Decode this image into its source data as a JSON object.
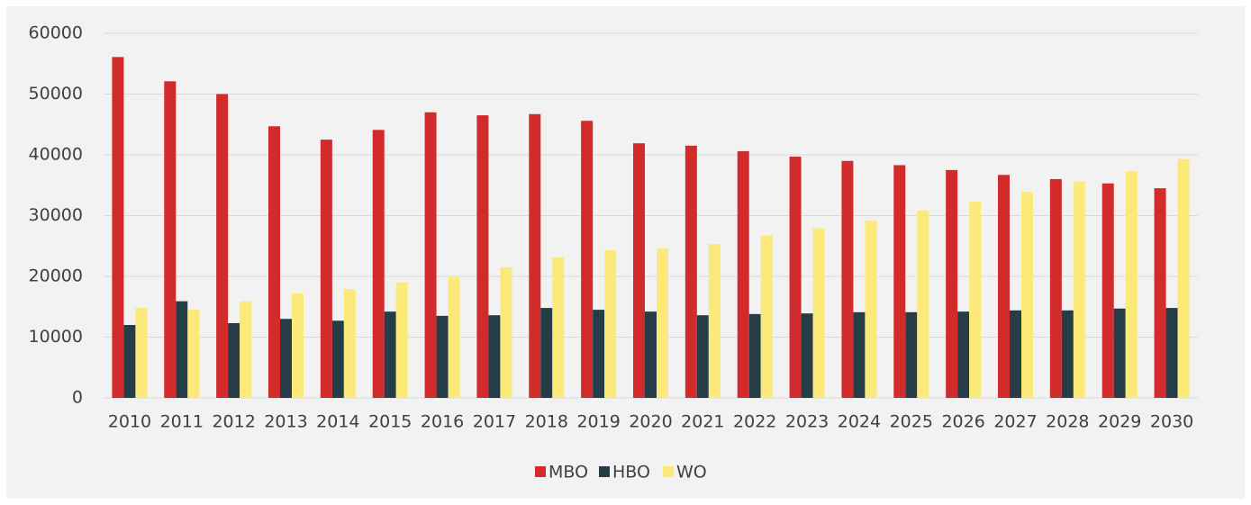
{
  "chart_data": {
    "type": "bar",
    "categories": [
      "2010",
      "2011",
      "2012",
      "2013",
      "2014",
      "2015",
      "2016",
      "2017",
      "2018",
      "2019",
      "2020",
      "2021",
      "2022",
      "2023",
      "2024",
      "2025",
      "2026",
      "2027",
      "2028",
      "2029",
      "2030"
    ],
    "series": [
      {
        "name": "MBO",
        "color": "#d22b2b",
        "values": [
          56100,
          52100,
          50000,
          44700,
          42500,
          44100,
          47000,
          46500,
          46700,
          45600,
          41900,
          41500,
          40600,
          39700,
          39000,
          38300,
          37500,
          36700,
          36000,
          35300,
          34500
        ]
      },
      {
        "name": "HBO",
        "color": "#263d47",
        "values": [
          12000,
          15900,
          12300,
          13000,
          12700,
          14200,
          13500,
          13600,
          14800,
          14500,
          14200,
          13600,
          13800,
          13900,
          14100,
          14100,
          14200,
          14400,
          14400,
          14700,
          14800
        ]
      },
      {
        "name": "WO",
        "color": "#fbe97a",
        "values": [
          14800,
          14500,
          15900,
          17200,
          17900,
          19000,
          20000,
          21500,
          23100,
          24300,
          24600,
          25300,
          26700,
          27900,
          29200,
          30800,
          32300,
          33900,
          35600,
          37300,
          39300
        ]
      }
    ],
    "ylim": [
      0,
      60000
    ],
    "yticks": [
      0,
      10000,
      20000,
      30000,
      40000,
      50000,
      60000
    ],
    "grid": true,
    "legend": "bottom"
  }
}
